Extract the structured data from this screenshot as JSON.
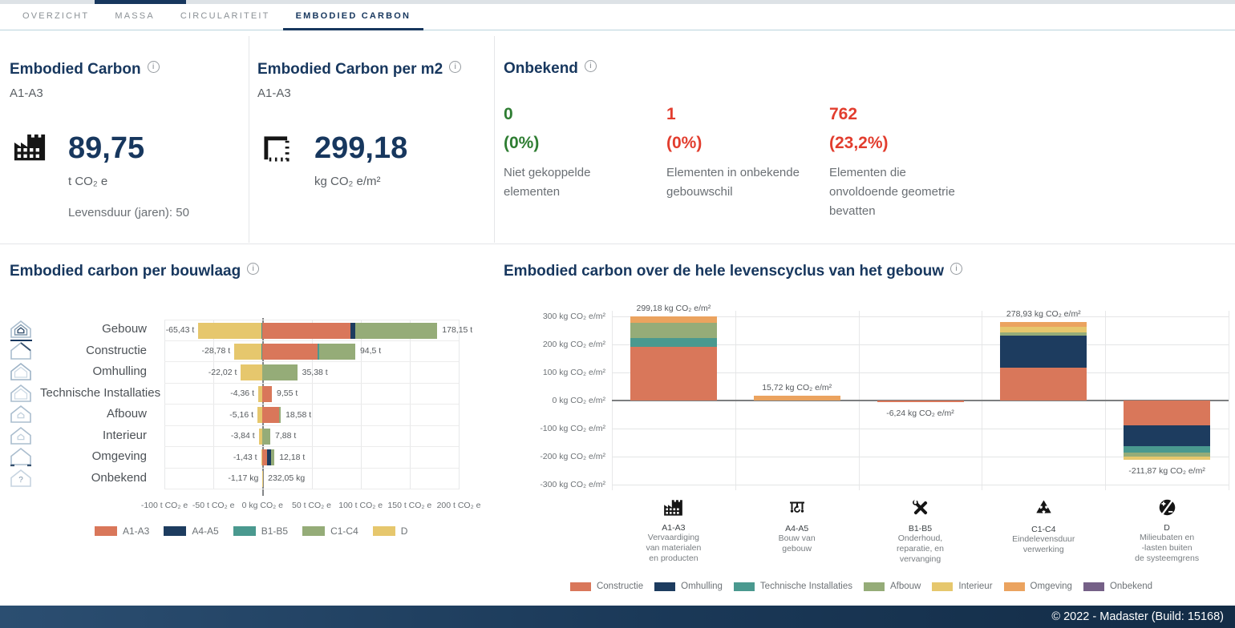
{
  "tabs": [
    {
      "label": "OVERZICHT",
      "active": false
    },
    {
      "label": "MASSA",
      "active": false
    },
    {
      "label": "CIRCULARITEIT",
      "active": false
    },
    {
      "label": "EMBODIED CARBON",
      "active": true
    }
  ],
  "cards": {
    "embodied_carbon": {
      "title": "Embodied Carbon",
      "scope": "A1-A3",
      "value": "89,75",
      "unit": "t CO₂ e",
      "lifetime": "Levensduur (jaren): 50",
      "icon": "factory-icon"
    },
    "embodied_carbon_m2": {
      "title": "Embodied Carbon per m2",
      "scope": "A1-A3",
      "value": "299,18",
      "unit": "kg CO₂ e/m²",
      "icon": "area-icon"
    },
    "onbekend": {
      "title": "Onbekend",
      "stats": [
        {
          "value": "0",
          "percent": "(0%)",
          "description": "Niet gekoppelde elementen",
          "color": "#2e7d32"
        },
        {
          "value": "1",
          "percent": "(0%)",
          "description": "Elementen in onbekende gebouwschil",
          "color": "#e23d2e"
        },
        {
          "value": "762",
          "percent": "(23,2%)",
          "description": "Elementen die onvoldoende geometrie bevatten",
          "color": "#e23d2e"
        }
      ]
    }
  },
  "colors": {
    "accent_navy": "#17375e",
    "positive_green": "#2e7d32",
    "alert_red": "#e23d2e",
    "phases": {
      "A1-A3": "#d9775a",
      "A4-A5": "#1d3c5f",
      "B1-B5": "#4a998f",
      "C1-C4": "#95ac78",
      "D": "#e6c76d"
    },
    "layers": {
      "Constructie": "#d9775a",
      "Omhulling": "#1d3c5f",
      "Technische Installaties": "#4a998f",
      "Afbouw": "#95ac78",
      "Interieur": "#e6c76d",
      "Omgeving": "#eba35f",
      "Onbekend": "#756087"
    }
  },
  "chart_data": [
    {
      "type": "bar",
      "orientation": "horizontal",
      "stacked": true,
      "title": "Embodied carbon per bouwlaag",
      "xlim": [
        -100,
        200
      ],
      "x_tick_values": [
        -100,
        -50,
        0,
        50,
        100,
        150,
        200
      ],
      "x_tick_labels": [
        "-100 t CO₂ e",
        "-50 t CO₂ e",
        "0 kg CO₂ e",
        "50 t CO₂ e",
        "100 t CO₂ e",
        "150 t CO₂ e",
        "200 t CO₂ e"
      ],
      "legend": [
        {
          "name": "A1-A3",
          "color": "#d9775a"
        },
        {
          "name": "A4-A5",
          "color": "#1d3c5f"
        },
        {
          "name": "B1-B5",
          "color": "#4a998f"
        },
        {
          "name": "C1-C4",
          "color": "#95ac78"
        },
        {
          "name": "D",
          "color": "#e6c76d"
        }
      ],
      "rows": [
        {
          "category": "Gebouw",
          "icon": "gebouw",
          "neg_label": "-65,43 t",
          "pos_label": "178,15 t",
          "neg_segments": [
            {
              "series": "B1-B5",
              "value": -1.0
            },
            {
              "series": "D",
              "value": -64.43
            }
          ],
          "pos_segments": [
            {
              "series": "A1-A3",
              "value": 89.75
            },
            {
              "series": "A4-A5",
              "value": 4.5
            },
            {
              "series": "C1-C4",
              "value": 83.9
            }
          ]
        },
        {
          "category": "Constructie",
          "icon": "constructie",
          "neg_label": "-28,78 t",
          "pos_label": "94,5 t",
          "neg_segments": [
            {
              "series": "B1-B5",
              "value": -0.8
            },
            {
              "series": "D",
              "value": -27.98
            }
          ],
          "pos_segments": [
            {
              "series": "A1-A3",
              "value": 56.0
            },
            {
              "series": "B1-B5",
              "value": 1.5
            },
            {
              "series": "C1-C4",
              "value": 37.0
            }
          ]
        },
        {
          "category": "Omhulling",
          "icon": "omhulling",
          "neg_label": "-22,02 t",
          "pos_label": "35,38 t",
          "neg_segments": [
            {
              "series": "D",
              "value": -22.02
            }
          ],
          "pos_segments": [
            {
              "series": "C1-C4",
              "value": 35.38
            }
          ]
        },
        {
          "category": "Technische Installaties",
          "icon": "technische",
          "neg_label": "-4,36 t",
          "pos_label": "9,55 t",
          "neg_segments": [
            {
              "series": "D",
              "value": -4.36
            }
          ],
          "pos_segments": [
            {
              "series": "A1-A3",
              "value": 9.55
            }
          ]
        },
        {
          "category": "Afbouw",
          "icon": "afbouw",
          "neg_label": "-5,16 t",
          "pos_label": "18,58 t",
          "neg_segments": [
            {
              "series": "D",
              "value": -5.16
            }
          ],
          "pos_segments": [
            {
              "series": "A1-A3",
              "value": 16.5
            },
            {
              "series": "C1-C4",
              "value": 2.08
            }
          ]
        },
        {
          "category": "Interieur",
          "icon": "interieur",
          "neg_label": "-3,84 t",
          "pos_label": "7,88 t",
          "neg_segments": [
            {
              "series": "D",
              "value": -3.84
            }
          ],
          "pos_segments": [
            {
              "series": "C1-C4",
              "value": 7.88
            }
          ]
        },
        {
          "category": "Omgeving",
          "icon": "omgeving",
          "neg_label": "-1,43 t",
          "pos_label": "12,18 t",
          "neg_segments": [
            {
              "series": "D",
              "value": -1.43
            }
          ],
          "pos_segments": [
            {
              "series": "A1-A3",
              "value": 5.0
            },
            {
              "series": "A4-A5",
              "value": 4.0
            },
            {
              "series": "C1-C4",
              "value": 3.18
            }
          ]
        },
        {
          "category": "Onbekend",
          "icon": "onbekend",
          "neg_label": "-1,17 kg",
          "pos_label": "232,05 kg",
          "neg_segments": [
            {
              "series": "D",
              "value": -0.00117
            }
          ],
          "pos_segments": [
            {
              "series": "A1-A3",
              "value": 0.232
            }
          ]
        }
      ]
    },
    {
      "type": "bar",
      "orientation": "vertical",
      "stacked": true,
      "title": "Embodied carbon over de hele levenscyclus van het gebouw",
      "ylim": [
        -300,
        300
      ],
      "y_tick_values": [
        300,
        200,
        100,
        0,
        -100,
        -200,
        -300
      ],
      "y_tick_labels": [
        "300 kg CO₂ e/m²",
        "200 kg CO₂ e/m²",
        "100 kg CO₂ e/m²",
        "0 kg CO₂ e/m²",
        "-100 kg CO₂ e/m²",
        "-200 kg CO₂ e/m²",
        "-300 kg CO₂ e/m²"
      ],
      "legend": [
        {
          "name": "Constructie",
          "color": "#d9775a"
        },
        {
          "name": "Omhulling",
          "color": "#1d3c5f"
        },
        {
          "name": "Technische Installaties",
          "color": "#4a998f"
        },
        {
          "name": "Afbouw",
          "color": "#95ac78"
        },
        {
          "name": "Interieur",
          "color": "#e6c76d"
        },
        {
          "name": "Omgeving",
          "color": "#eba35f"
        },
        {
          "name": "Onbekend",
          "color": "#756087"
        }
      ],
      "columns": [
        {
          "code": "A1-A3",
          "icon": "factory",
          "label_lines": [
            "Vervaardiging",
            "van materialen",
            "en producten"
          ],
          "annotation": "299,18 kg CO₂ e/m²",
          "total": 299.18,
          "segments": [
            {
              "layer": "Constructie",
              "value": 192
            },
            {
              "layer": "Technische Installaties",
              "value": 30
            },
            {
              "layer": "Afbouw",
              "value": 55
            },
            {
              "layer": "Omgeving",
              "value": 22.18
            }
          ]
        },
        {
          "code": "A4-A5",
          "icon": "crane",
          "label_lines": [
            "Bouw van",
            "gebouw"
          ],
          "annotation": "15,72 kg CO₂ e/m²",
          "total": 15.72,
          "segments": [
            {
              "layer": "Omgeving",
              "value": 15.72
            }
          ]
        },
        {
          "code": "B1-B5",
          "icon": "tools",
          "label_lines": [
            "Onderhoud,",
            "reparatie, en",
            "vervanging"
          ],
          "annotation": "-6,24 kg CO₂ e/m²",
          "total": -6.24,
          "segments": [
            {
              "layer": "Constructie",
              "value": -6.24
            }
          ]
        },
        {
          "code": "C1-C4",
          "icon": "recycle",
          "label_lines": [
            "Eindelevensduur",
            "verwerking"
          ],
          "annotation": "278,93 kg CO₂ e/m²",
          "total": 278.93,
          "segments": [
            {
              "layer": "Constructie",
              "value": 118
            },
            {
              "layer": "Omhulling",
              "value": 114
            },
            {
              "layer": "Afbouw",
              "value": 10
            },
            {
              "layer": "Interieur",
              "value": 21
            },
            {
              "layer": "Omgeving",
              "value": 15.93
            }
          ]
        },
        {
          "code": "D",
          "icon": "plusminus",
          "label_lines": [
            "Milieubaten en",
            "-lasten buiten",
            "de systeemgrens"
          ],
          "annotation": "-211,87 kg CO₂ e/m²",
          "total": -211.87,
          "segments": [
            {
              "layer": "Constructie",
              "value": -88
            },
            {
              "layer": "Omhulling",
              "value": -76
            },
            {
              "layer": "Technische Installaties",
              "value": -22
            },
            {
              "layer": "Afbouw",
              "value": -14
            },
            {
              "layer": "Interieur",
              "value": -11.87
            }
          ]
        }
      ]
    }
  ],
  "footer": {
    "copyright": "© 2022 - Madaster (Build: 15168)"
  }
}
